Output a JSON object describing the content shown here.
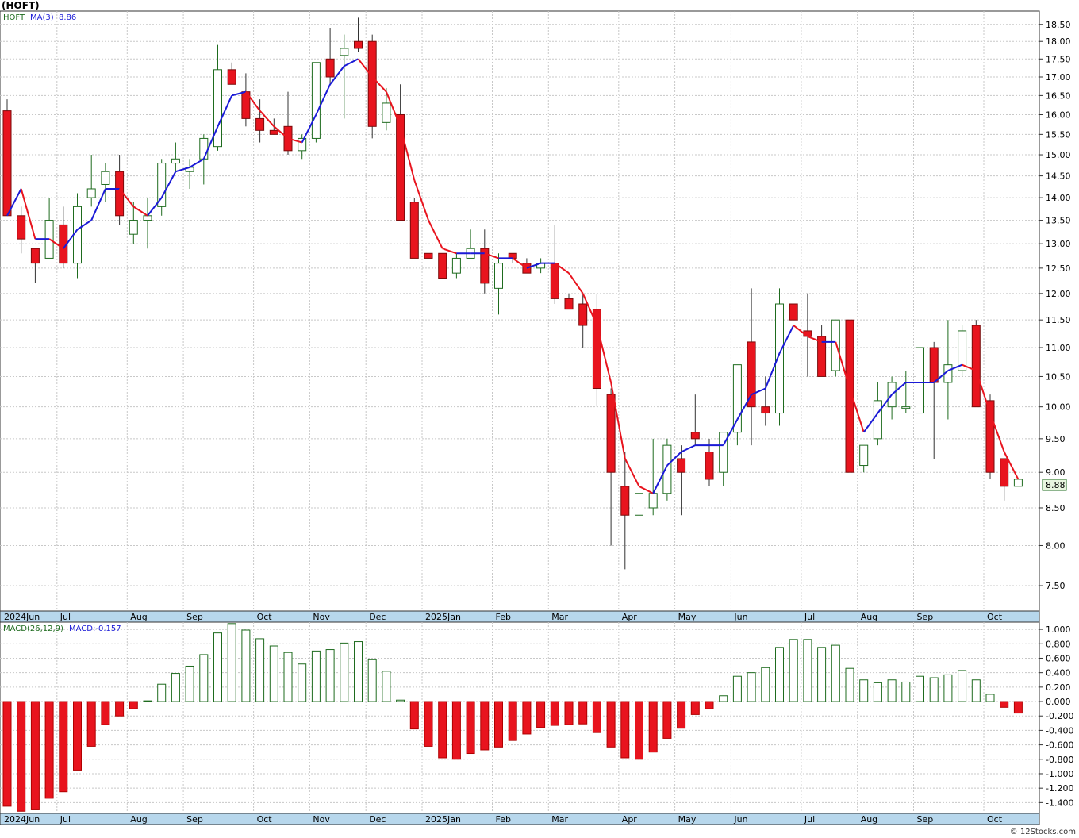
{
  "title": "(HOFT)",
  "watermark": "© 12Stocks.com",
  "colors": {
    "up": "#1e6b1e",
    "down": "#e8141e",
    "ma_up": "#1a1ad6",
    "ma_down": "#e8141e",
    "price_box": "#e8f5e0"
  },
  "price_legend": {
    "symbol": "HOFT",
    "ma_label": "MA(3)",
    "ma_value": "8.86"
  },
  "macd_legend": {
    "label": "MACD(26,12,9)",
    "value_label": "MACD:-0.157"
  },
  "last_price": "8.88",
  "month_labels": [
    {
      "text": "2024Jun",
      "w": 0
    },
    {
      "text": "Jul",
      "w": 4
    },
    {
      "text": "Aug",
      "w": 9
    },
    {
      "text": "Sep",
      "w": 13
    },
    {
      "text": "Oct",
      "w": 18
    },
    {
      "text": "Nov",
      "w": 22
    },
    {
      "text": "Dec",
      "w": 26
    },
    {
      "text": "2025Jan",
      "w": 30
    },
    {
      "text": "Feb",
      "w": 35
    },
    {
      "text": "Mar",
      "w": 39
    },
    {
      "text": "Apr",
      "w": 44
    },
    {
      "text": "May",
      "w": 48
    },
    {
      "text": "Jun",
      "w": 52
    },
    {
      "text": "Jul",
      "w": 57
    },
    {
      "text": "Aug",
      "w": 61
    },
    {
      "text": "Sep",
      "w": 65
    },
    {
      "text": "Oct",
      "w": 70
    }
  ],
  "chart_data": [
    {
      "type": "candlestick",
      "scale": "log",
      "ylim": [
        7.2,
        18.9
      ],
      "yticks": [
        7.5,
        8.0,
        8.5,
        9.0,
        9.5,
        10.0,
        10.5,
        11.0,
        11.5,
        12.0,
        12.5,
        13.0,
        13.5,
        14.0,
        14.5,
        15.0,
        15.5,
        16.0,
        16.5,
        17.0,
        17.5,
        18.0,
        18.5
      ],
      "ytick_labels": [
        "7.50",
        "8.00",
        "8.50",
        "9.00",
        "9.50",
        "10.00",
        "10.50",
        "11.00",
        "11.50",
        "12.00",
        "12.50",
        "13.00",
        "13.50",
        "14.00",
        "14.50",
        "15.00",
        "15.50",
        "16.00",
        "16.50",
        "17.00",
        "17.50",
        "18.00",
        "18.50"
      ],
      "ohlc": [
        [
          16.1,
          16.4,
          13.6,
          13.6
        ],
        [
          13.6,
          13.8,
          12.8,
          13.1
        ],
        [
          12.9,
          12.9,
          12.2,
          12.6
        ],
        [
          12.7,
          14.0,
          12.7,
          13.5
        ],
        [
          13.4,
          13.8,
          12.5,
          12.6
        ],
        [
          12.6,
          14.1,
          12.3,
          13.8
        ],
        [
          14.0,
          15.0,
          13.8,
          14.2
        ],
        [
          14.3,
          14.8,
          13.9,
          14.6
        ],
        [
          14.6,
          15.0,
          13.4,
          13.6
        ],
        [
          13.2,
          13.9,
          13.0,
          13.5
        ],
        [
          13.5,
          14.0,
          12.9,
          13.6
        ],
        [
          13.8,
          14.9,
          13.6,
          14.8
        ],
        [
          14.8,
          15.3,
          14.6,
          14.9
        ],
        [
          14.6,
          14.9,
          14.2,
          14.7
        ],
        [
          14.9,
          15.5,
          14.3,
          15.4
        ],
        [
          15.2,
          17.9,
          15.1,
          17.2
        ],
        [
          17.2,
          17.4,
          16.8,
          16.8
        ],
        [
          16.6,
          17.1,
          15.7,
          15.9
        ],
        [
          15.9,
          16.4,
          15.3,
          15.6
        ],
        [
          15.6,
          15.9,
          15.5,
          15.5
        ],
        [
          15.7,
          16.6,
          15.0,
          15.1
        ],
        [
          15.1,
          15.5,
          14.9,
          15.4
        ],
        [
          15.4,
          17.4,
          15.3,
          17.4
        ],
        [
          17.5,
          18.4,
          16.8,
          17.0
        ],
        [
          17.6,
          18.2,
          15.9,
          17.8
        ],
        [
          18.0,
          18.7,
          17.7,
          17.8
        ],
        [
          18.0,
          18.2,
          15.4,
          15.7
        ],
        [
          15.8,
          16.7,
          15.6,
          16.3
        ],
        [
          16.0,
          16.8,
          13.5,
          13.5
        ],
        [
          13.9,
          14.0,
          12.7,
          12.7
        ],
        [
          12.8,
          12.8,
          12.7,
          12.7
        ],
        [
          12.8,
          12.8,
          12.3,
          12.3
        ],
        [
          12.4,
          12.8,
          12.3,
          12.7
        ],
        [
          12.7,
          13.3,
          12.7,
          12.9
        ],
        [
          12.9,
          13.3,
          12.0,
          12.2
        ],
        [
          12.1,
          12.8,
          11.6,
          12.6
        ],
        [
          12.8,
          12.8,
          12.6,
          12.7
        ],
        [
          12.6,
          12.7,
          12.4,
          12.4
        ],
        [
          12.5,
          12.7,
          12.4,
          12.6
        ],
        [
          12.6,
          13.4,
          11.8,
          11.9
        ],
        [
          11.9,
          12.0,
          11.8,
          11.7
        ],
        [
          11.8,
          12.0,
          11.0,
          11.4
        ],
        [
          11.7,
          12.0,
          10.0,
          10.3
        ],
        [
          10.2,
          10.3,
          8.0,
          9.0
        ],
        [
          8.8,
          9.3,
          7.7,
          8.4
        ],
        [
          8.4,
          8.8,
          7.2,
          8.7
        ],
        [
          8.5,
          9.5,
          8.4,
          8.7
        ],
        [
          8.7,
          9.5,
          8.6,
          9.4
        ],
        [
          9.2,
          9.4,
          8.4,
          9.0
        ],
        [
          9.6,
          10.2,
          9.4,
          9.5
        ],
        [
          9.3,
          9.5,
          8.8,
          8.9
        ],
        [
          9.0,
          9.6,
          8.8,
          9.6
        ],
        [
          9.6,
          10.6,
          9.4,
          10.7
        ],
        [
          11.1,
          12.1,
          9.4,
          10.0
        ],
        [
          10.0,
          10.5,
          9.7,
          9.9
        ],
        [
          9.9,
          12.1,
          9.7,
          11.8
        ],
        [
          11.8,
          11.8,
          11.6,
          11.5
        ],
        [
          11.3,
          12.0,
          10.5,
          11.2
        ],
        [
          11.2,
          11.4,
          10.5,
          10.5
        ],
        [
          10.6,
          11.5,
          10.5,
          11.5
        ],
        [
          11.5,
          11.5,
          9.1,
          9.0
        ],
        [
          9.1,
          9.4,
          9.0,
          9.4
        ],
        [
          9.5,
          10.4,
          9.4,
          10.1
        ],
        [
          10.0,
          10.5,
          9.8,
          10.4
        ],
        [
          10.0,
          10.6,
          9.9,
          10.0
        ],
        [
          9.9,
          11.0,
          9.9,
          11.0
        ],
        [
          11.0,
          11.1,
          9.2,
          10.4
        ],
        [
          10.4,
          11.5,
          9.8,
          10.7
        ],
        [
          10.6,
          11.4,
          10.5,
          11.3
        ],
        [
          11.4,
          11.5,
          10.0,
          10.0
        ],
        [
          10.1,
          10.2,
          8.9,
          9.0
        ],
        [
          9.2,
          9.2,
          8.6,
          8.8
        ],
        [
          8.8,
          8.9,
          8.8,
          8.9
        ]
      ],
      "ma3": [
        13.6,
        14.2,
        13.1,
        13.1,
        12.9,
        13.3,
        13.5,
        14.2,
        14.2,
        13.8,
        13.6,
        14.0,
        14.6,
        14.7,
        14.9,
        15.7,
        16.5,
        16.6,
        16.1,
        15.7,
        15.4,
        15.3,
        16.0,
        16.8,
        17.3,
        17.5,
        17.0,
        16.6,
        15.7,
        14.4,
        13.5,
        12.9,
        12.8,
        12.8,
        12.8,
        12.7,
        12.7,
        12.5,
        12.6,
        12.6,
        12.4,
        12.0,
        11.4,
        10.4,
        9.2,
        8.8,
        8.7,
        9.1,
        9.3,
        9.4,
        9.4,
        9.4,
        9.8,
        10.2,
        10.3,
        10.9,
        11.4,
        11.2,
        11.1,
        11.1,
        10.3,
        9.6,
        9.9,
        10.2,
        10.4,
        10.4,
        10.4,
        10.6,
        10.7,
        10.6,
        9.9,
        9.3,
        8.9
      ],
      "last_price": 8.88
    },
    {
      "type": "bar",
      "name": "MACD(26,12,9)",
      "ylim": [
        -1.55,
        1.1
      ],
      "yticks": [
        -1.4,
        -1.2,
        -1.0,
        -0.8,
        -0.6,
        -0.4,
        -0.2,
        0.0,
        0.2,
        0.4,
        0.6,
        0.8,
        1.0
      ],
      "ytick_labels": [
        "-1.400",
        "-1.200",
        "-1.000",
        "-0.800",
        "-0.600",
        "-0.400",
        "-0.200",
        "0.000",
        "0.200",
        "0.400",
        "0.600",
        "0.800",
        "1.000"
      ],
      "values": [
        -1.45,
        -1.52,
        -1.5,
        -1.34,
        -1.25,
        -0.95,
        -0.62,
        -0.32,
        -0.2,
        -0.1,
        0.01,
        0.24,
        0.39,
        0.49,
        0.65,
        0.95,
        1.08,
        0.99,
        0.87,
        0.77,
        0.68,
        0.52,
        0.7,
        0.72,
        0.81,
        0.83,
        0.58,
        0.42,
        0.02,
        -0.38,
        -0.62,
        -0.78,
        -0.8,
        -0.72,
        -0.67,
        -0.63,
        -0.54,
        -0.45,
        -0.36,
        -0.33,
        -0.32,
        -0.31,
        -0.43,
        -0.63,
        -0.78,
        -0.8,
        -0.7,
        -0.51,
        -0.37,
        -0.18,
        -0.1,
        0.08,
        0.35,
        0.4,
        0.47,
        0.75,
        0.86,
        0.86,
        0.75,
        0.78,
        0.46,
        0.3,
        0.26,
        0.3,
        0.27,
        0.35,
        0.33,
        0.37,
        0.43,
        0.3,
        0.1,
        -0.08,
        -0.16
      ],
      "last_value": -0.157
    }
  ]
}
